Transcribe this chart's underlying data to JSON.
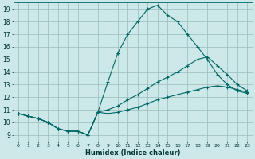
{
  "xlabel": "Humidex (Indice chaleur)",
  "bg_color": "#cce8e8",
  "grid_color": "#99bbbb",
  "line_color": "#006666",
  "tick_color": "#003333",
  "xlim": [
    -0.5,
    23.5
  ],
  "ylim": [
    8.5,
    19.5
  ],
  "yticks": [
    9,
    10,
    11,
    12,
    13,
    14,
    15,
    16,
    17,
    18,
    19
  ],
  "xticks": [
    0,
    1,
    2,
    3,
    4,
    5,
    6,
    7,
    8,
    9,
    10,
    11,
    12,
    13,
    14,
    15,
    16,
    17,
    18,
    19,
    20,
    21,
    22,
    23
  ],
  "line1_x": [
    0,
    1,
    2,
    3,
    4,
    5,
    6,
    7,
    8,
    9,
    10,
    11,
    12,
    13,
    14,
    15,
    16,
    17,
    18,
    19,
    20,
    21,
    22,
    23
  ],
  "line1_y": [
    10.7,
    10.5,
    10.3,
    10.0,
    9.5,
    9.3,
    9.3,
    9.0,
    10.8,
    13.2,
    15.5,
    17.0,
    18.0,
    19.0,
    19.3,
    18.5,
    18.0,
    17.0,
    16.0,
    15.0,
    13.8,
    13.0,
    12.5,
    12.3
  ],
  "line2_x": [
    0,
    1,
    2,
    3,
    4,
    5,
    6,
    7,
    8,
    9,
    10,
    11,
    12,
    13,
    14,
    15,
    16,
    17,
    18,
    19,
    20,
    21,
    22,
    23
  ],
  "line2_y": [
    10.7,
    10.5,
    10.3,
    10.0,
    9.5,
    9.3,
    9.3,
    9.0,
    10.8,
    11.0,
    11.3,
    11.8,
    12.2,
    12.7,
    13.2,
    13.6,
    14.0,
    14.5,
    15.0,
    15.2,
    14.5,
    13.8,
    13.0,
    12.5
  ],
  "line3_x": [
    0,
    1,
    2,
    3,
    4,
    5,
    6,
    7,
    8,
    9,
    10,
    11,
    12,
    13,
    14,
    15,
    16,
    17,
    18,
    19,
    20,
    21,
    22,
    23
  ],
  "line3_y": [
    10.7,
    10.5,
    10.3,
    10.0,
    9.5,
    9.3,
    9.3,
    9.0,
    10.8,
    10.7,
    10.8,
    11.0,
    11.2,
    11.5,
    11.8,
    12.0,
    12.2,
    12.4,
    12.6,
    12.8,
    12.9,
    12.8,
    12.6,
    12.4
  ]
}
